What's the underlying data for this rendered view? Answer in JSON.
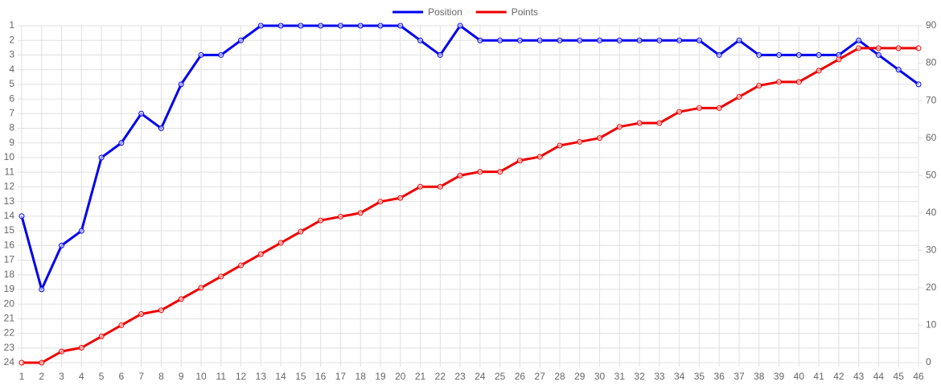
{
  "chart_data": {
    "type": "line",
    "x": [
      1,
      2,
      3,
      4,
      5,
      6,
      7,
      8,
      9,
      10,
      11,
      12,
      13,
      14,
      15,
      16,
      17,
      18,
      19,
      20,
      21,
      22,
      23,
      24,
      25,
      26,
      27,
      28,
      29,
      30,
      31,
      32,
      33,
      34,
      35,
      36,
      37,
      38,
      39,
      40,
      41,
      42,
      43,
      44,
      45,
      46
    ],
    "xlim": [
      1,
      46
    ],
    "ylim": [
      1,
      24
    ],
    "y_reversed": true,
    "yticks": [
      1,
      2,
      3,
      4,
      5,
      6,
      7,
      8,
      9,
      10,
      11,
      12,
      13,
      14,
      15,
      16,
      17,
      18,
      19,
      20,
      21,
      22,
      23,
      24
    ],
    "y2lim": [
      0,
      90
    ],
    "y2ticks": [
      0,
      10,
      20,
      30,
      40,
      50,
      60,
      70,
      80,
      90
    ],
    "grid": true,
    "legend": "top",
    "series": [
      {
        "name": "Position",
        "color": "#0000ee",
        "values": [
          14,
          19,
          16,
          15,
          10,
          9,
          7,
          8,
          5,
          3,
          3,
          2,
          1,
          1,
          1,
          1,
          1,
          1,
          1,
          1,
          2,
          3,
          1,
          2,
          2,
          2,
          2,
          2,
          2,
          2,
          2,
          2,
          2,
          2,
          2,
          3,
          2,
          3,
          3,
          3,
          3,
          3,
          2,
          3,
          4,
          5
        ]
      },
      {
        "name": "Points",
        "color": "#ee0000",
        "axis": "y2",
        "values": [
          0,
          0,
          3,
          4,
          7,
          10,
          13,
          14,
          17,
          20,
          23,
          26,
          29,
          32,
          35,
          38,
          39,
          40,
          43,
          44,
          47,
          47,
          50,
          51,
          51,
          54,
          55,
          58,
          59,
          60,
          63,
          64,
          64,
          67,
          68,
          68,
          71,
          74,
          75,
          75,
          78,
          81,
          84,
          84,
          84,
          84
        ]
      }
    ]
  }
}
